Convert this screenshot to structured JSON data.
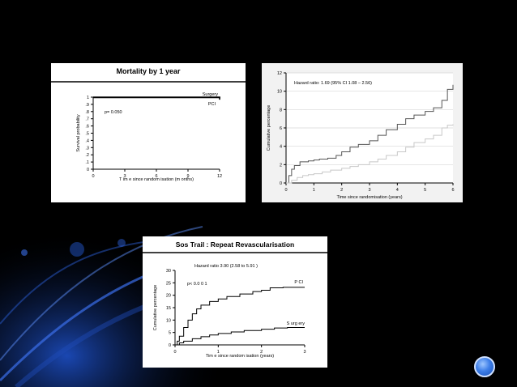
{
  "slide": {
    "background": "#000000",
    "accent": "#2a63d8",
    "nav_icon": "circle-button-icon"
  },
  "chart_data": [
    {
      "type": "line",
      "title": "Mortality by 1 year",
      "xlabel": "T im e  since  random isation (m onths)",
      "ylabel": "Survival probability",
      "xlim": [
        0,
        12
      ],
      "ylim": [
        0,
        1
      ],
      "x_ticks": [
        "0",
        "3",
        "6",
        "9",
        "12"
      ],
      "y_ticks": [
        "0",
        ".1",
        ".2",
        ".3",
        ".4",
        ".5",
        ".6",
        ".7",
        ".8",
        ".9",
        "1"
      ],
      "annotations": [
        "p= 0.050"
      ],
      "series": [
        {
          "name": "Surgery",
          "x": [
            0,
            12
          ],
          "y": [
            1.0,
            0.985
          ]
        },
        {
          "name": "PCI",
          "x": [
            0,
            12
          ],
          "y": [
            0.995,
            0.965
          ]
        }
      ]
    },
    {
      "type": "line",
      "title": "",
      "xlabel": "Time since randomisation (years)",
      "ylabel": "Cumulative percentage",
      "xlim": [
        0,
        6
      ],
      "ylim": [
        0,
        12
      ],
      "x_ticks": [
        "0",
        "1",
        "2",
        "3",
        "4",
        "5",
        "6"
      ],
      "y_ticks": [
        "0",
        "2",
        "4",
        "6",
        "8",
        "10",
        "12"
      ],
      "annotations": [
        "Hazard ratio: 1.69 (95% CI 1.08 – 2.56)"
      ],
      "series": [
        {
          "x": [
            0,
            0.1,
            0.2,
            0.3,
            0.5,
            0.8,
            1.0,
            1.2,
            1.5,
            1.8,
            2.0,
            2.3,
            2.6,
            3.0,
            3.3,
            3.6,
            4.0,
            4.3,
            4.6,
            5.0,
            5.3,
            5.6,
            5.8,
            6.0
          ],
          "y": [
            0,
            0.8,
            1.5,
            1.9,
            2.3,
            2.4,
            2.5,
            2.6,
            2.7,
            3.0,
            3.4,
            3.9,
            4.2,
            4.6,
            5.2,
            5.8,
            6.4,
            7.0,
            7.4,
            7.8,
            8.2,
            9.0,
            10.2,
            10.7
          ]
        },
        {
          "x": [
            0,
            0.2,
            0.4,
            0.6,
            0.8,
            1.0,
            1.3,
            1.6,
            2.0,
            2.3,
            2.6,
            3.0,
            3.3,
            3.6,
            4.0,
            4.3,
            4.6,
            5.0,
            5.3,
            5.6,
            5.8,
            6.0
          ],
          "y": [
            0,
            0.3,
            0.6,
            0.8,
            0.9,
            1.0,
            1.2,
            1.4,
            1.6,
            1.8,
            2.0,
            2.3,
            2.6,
            3.0,
            3.4,
            3.9,
            4.4,
            4.8,
            5.2,
            6.0,
            6.3,
            6.4
          ]
        }
      ]
    },
    {
      "type": "line",
      "title": "Sos Trail : Repeat Revascularisation",
      "xlabel": "Tim e  since  random isation  (years)",
      "ylabel": "Cumulative percentage",
      "xlim": [
        0,
        3
      ],
      "ylim": [
        0,
        30
      ],
      "x_ticks": [
        "0",
        "1",
        "2",
        "3"
      ],
      "y_ticks": [
        "0",
        "5",
        "10",
        "15",
        "20",
        "25",
        "30"
      ],
      "annotations": [
        "Hazard ratio 3.90 (2.58 to 5.91 )",
        "p< 0.0 0 1"
      ],
      "series": [
        {
          "name": "P CI",
          "x": [
            0,
            0.05,
            0.1,
            0.2,
            0.3,
            0.4,
            0.5,
            0.6,
            0.8,
            1.0,
            1.2,
            1.5,
            1.8,
            2.0,
            2.2,
            2.5,
            3.0
          ],
          "y": [
            0,
            1.5,
            3.5,
            7,
            10,
            12.5,
            14.5,
            16,
            17.5,
            18.5,
            19.5,
            20.5,
            21.5,
            22,
            23,
            23.2,
            23.2
          ]
        },
        {
          "name": "S urg ery",
          "x": [
            0,
            0.1,
            0.2,
            0.4,
            0.6,
            0.8,
            1.0,
            1.3,
            1.6,
            2.0,
            2.3,
            2.6,
            3.0
          ],
          "y": [
            0,
            0.8,
            1.5,
            2.5,
            3.3,
            4.0,
            4.6,
            5.2,
            5.8,
            6.3,
            6.8,
            7.0,
            7.0
          ]
        }
      ]
    }
  ]
}
